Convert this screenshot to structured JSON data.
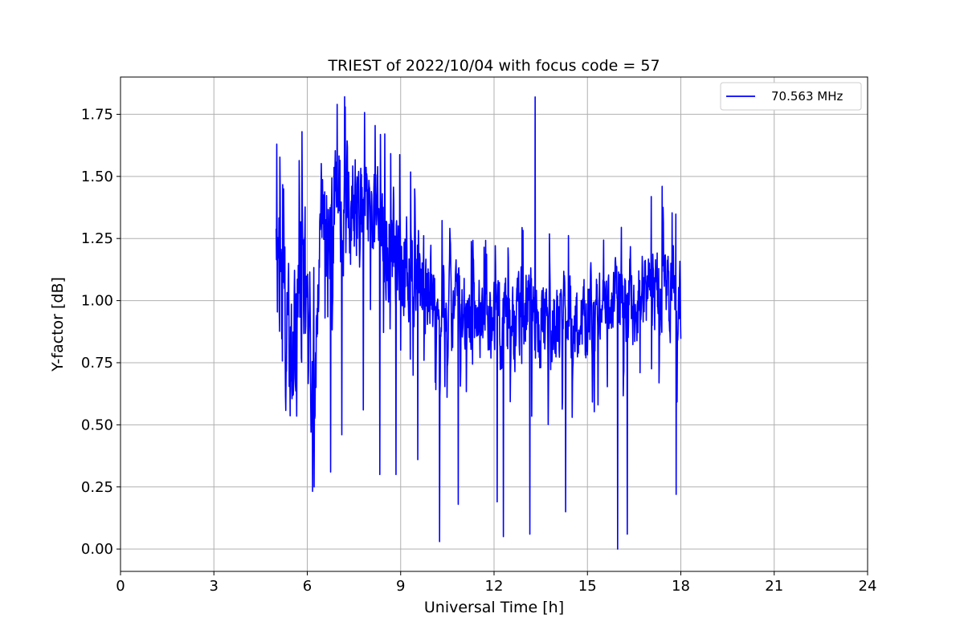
{
  "chart_data": {
    "type": "line",
    "title": "TRIEST of 2022/10/04 with focus code = 57",
    "xlabel": "Universal Time [h]",
    "ylabel": "Y-factor [dB]",
    "xlim": [
      0,
      24
    ],
    "ylim": [
      -0.09,
      1.9
    ],
    "xticks": [
      0,
      3,
      6,
      9,
      12,
      15,
      18,
      21,
      24
    ],
    "xtick_labels": [
      "0",
      "3",
      "6",
      "9",
      "12",
      "15",
      "18",
      "21",
      "24"
    ],
    "yticks": [
      0.0,
      0.25,
      0.5,
      0.75,
      1.0,
      1.25,
      1.5,
      1.75
    ],
    "ytick_labels": [
      "0.00",
      "0.25",
      "0.50",
      "0.75",
      "1.00",
      "1.25",
      "1.50",
      "1.75"
    ],
    "grid": true,
    "legend_position": "top-right",
    "series": [
      {
        "name": "70.563 MHz",
        "color": "#0000ff",
        "sample_interval_h": 0.01,
        "x_start": 5.0,
        "x_end": 18.0,
        "envelope": [
          {
            "x": 5.0,
            "min": 0.43,
            "max": 1.63
          },
          {
            "x": 5.5,
            "min": 0.33,
            "max": 1.2
          },
          {
            "x": 5.85,
            "min": 0.37,
            "max": 1.68
          },
          {
            "x": 6.25,
            "min": 0.25,
            "max": 1.05
          },
          {
            "x": 6.4,
            "min": 0.95,
            "max": 1.7
          },
          {
            "x": 7.0,
            "min": 0.99,
            "max": 1.79
          },
          {
            "x": 8.0,
            "min": 1.0,
            "max": 1.68
          },
          {
            "x": 9.0,
            "min": 0.85,
            "max": 1.55
          },
          {
            "x": 10.0,
            "min": 0.75,
            "max": 1.3
          },
          {
            "x": 11.0,
            "min": 0.65,
            "max": 1.2
          },
          {
            "x": 12.0,
            "min": 0.62,
            "max": 1.18
          },
          {
            "x": 13.0,
            "min": 0.6,
            "max": 1.25
          },
          {
            "x": 14.0,
            "min": 0.62,
            "max": 1.2
          },
          {
            "x": 15.0,
            "min": 0.66,
            "max": 1.22
          },
          {
            "x": 16.0,
            "min": 0.7,
            "max": 1.25
          },
          {
            "x": 17.0,
            "min": 0.78,
            "max": 1.38
          },
          {
            "x": 18.0,
            "min": 0.7,
            "max": 1.3
          }
        ],
        "spikes": [
          {
            "x": 5.02,
            "y": 1.63
          },
          {
            "x": 5.83,
            "y": 1.68
          },
          {
            "x": 6.22,
            "y": 0.25
          },
          {
            "x": 6.75,
            "y": 0.31
          },
          {
            "x": 6.96,
            "y": 1.79
          },
          {
            "x": 7.11,
            "y": 0.46
          },
          {
            "x": 7.22,
            "y": 1.78
          },
          {
            "x": 7.8,
            "y": 0.56
          },
          {
            "x": 8.33,
            "y": 0.3
          },
          {
            "x": 8.85,
            "y": 0.3
          },
          {
            "x": 9.55,
            "y": 0.36
          },
          {
            "x": 10.25,
            "y": 0.03
          },
          {
            "x": 10.85,
            "y": 0.18
          },
          {
            "x": 12.1,
            "y": 0.19
          },
          {
            "x": 12.3,
            "y": 0.05
          },
          {
            "x": 13.15,
            "y": 0.06
          },
          {
            "x": 13.32,
            "y": 1.82
          },
          {
            "x": 14.3,
            "y": 0.15
          },
          {
            "x": 15.97,
            "y": 0.0
          },
          {
            "x": 16.28,
            "y": 0.06
          },
          {
            "x": 17.4,
            "y": 1.46
          },
          {
            "x": 17.85,
            "y": 0.22
          }
        ]
      }
    ]
  }
}
